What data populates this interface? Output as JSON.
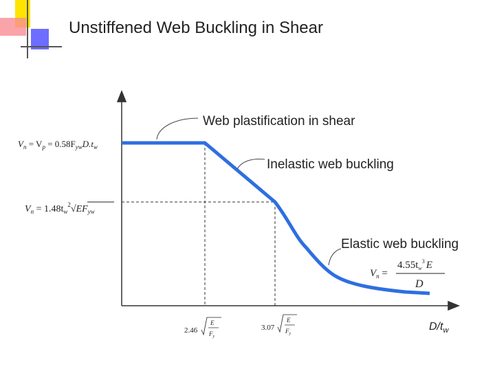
{
  "title": "Unstiffened Web Buckling in Shear",
  "labels": [
    "Web plastification in shear",
    "Inelastic web buckling",
    "Elastic web buckling"
  ],
  "axis_label": [
    "D/t",
    "w"
  ],
  "formula_plastic": [
    "V",
    "n",
    " = V",
    "p",
    " = 0.58F",
    "yw",
    "D.t",
    "w"
  ],
  "formula_inelastic": [
    "V",
    "n",
    " = 1.48t",
    "w",
    "2",
    "√",
    "EF",
    "yw"
  ],
  "formula_elastic": {
    "left": [
      "V",
      "n",
      " ="
    ],
    "numerator": [
      "4.55t",
      "w",
      "3",
      "E"
    ],
    "denominator": "D"
  },
  "x_ticks": [
    {
      "coefficient": "2.46",
      "numerator": "E",
      "denominator": [
        "F",
        "y"
      ]
    },
    {
      "coefficient": "3.07",
      "numerator": "E",
      "denominator": [
        "F",
        "y"
      ]
    }
  ]
}
